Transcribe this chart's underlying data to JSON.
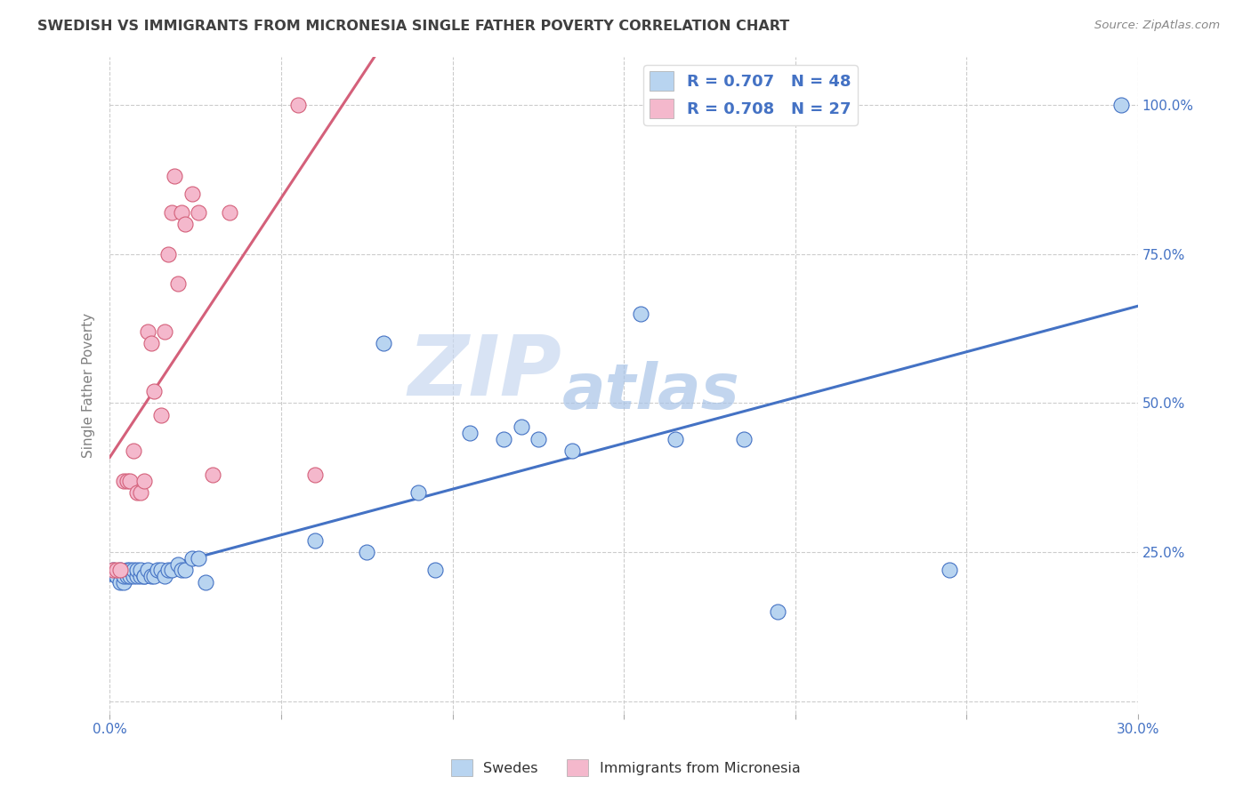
{
  "title": "SWEDISH VS IMMIGRANTS FROM MICRONESIA SINGLE FATHER POVERTY CORRELATION CHART",
  "source": "Source: ZipAtlas.com",
  "ylabel_label": "Single Father Poverty",
  "legend_label1": "Swedes",
  "legend_label2": "Immigrants from Micronesia",
  "r1": 0.707,
  "n1": 48,
  "r2": 0.708,
  "n2": 27,
  "watermark_zip": "ZIP",
  "watermark_atlas": "atlas",
  "xlim": [
    0.0,
    0.3
  ],
  "ylim": [
    -0.02,
    1.08
  ],
  "yticks": [
    0.0,
    0.25,
    0.5,
    0.75,
    1.0
  ],
  "ytick_labels": [
    "",
    "25.0%",
    "50.0%",
    "75.0%",
    "100.0%"
  ],
  "xtick_vals": [
    0.0,
    0.05,
    0.1,
    0.15,
    0.2,
    0.25,
    0.3
  ],
  "swedes_x": [
    0.001,
    0.002,
    0.003,
    0.003,
    0.004,
    0.004,
    0.005,
    0.005,
    0.006,
    0.006,
    0.007,
    0.007,
    0.008,
    0.008,
    0.009,
    0.009,
    0.01,
    0.01,
    0.011,
    0.012,
    0.013,
    0.014,
    0.015,
    0.016,
    0.017,
    0.018,
    0.02,
    0.021,
    0.022,
    0.024,
    0.026,
    0.028,
    0.06,
    0.075,
    0.08,
    0.09,
    0.095,
    0.105,
    0.115,
    0.12,
    0.125,
    0.135,
    0.155,
    0.165,
    0.185,
    0.195,
    0.245,
    0.295
  ],
  "swedes_y": [
    0.22,
    0.21,
    0.2,
    0.22,
    0.2,
    0.21,
    0.21,
    0.22,
    0.21,
    0.22,
    0.21,
    0.22,
    0.21,
    0.22,
    0.21,
    0.22,
    0.21,
    0.21,
    0.22,
    0.21,
    0.21,
    0.22,
    0.22,
    0.21,
    0.22,
    0.22,
    0.23,
    0.22,
    0.22,
    0.24,
    0.24,
    0.2,
    0.27,
    0.25,
    0.6,
    0.35,
    0.22,
    0.45,
    0.44,
    0.46,
    0.44,
    0.42,
    0.65,
    0.44,
    0.44,
    0.15,
    0.22,
    1.0
  ],
  "micronesia_x": [
    0.001,
    0.002,
    0.003,
    0.004,
    0.005,
    0.006,
    0.007,
    0.008,
    0.009,
    0.01,
    0.011,
    0.012,
    0.013,
    0.015,
    0.016,
    0.017,
    0.018,
    0.019,
    0.02,
    0.021,
    0.022,
    0.024,
    0.026,
    0.03,
    0.035,
    0.055,
    0.06
  ],
  "micronesia_y": [
    0.22,
    0.22,
    0.22,
    0.37,
    0.37,
    0.37,
    0.42,
    0.35,
    0.35,
    0.37,
    0.62,
    0.6,
    0.52,
    0.48,
    0.62,
    0.75,
    0.82,
    0.88,
    0.7,
    0.82,
    0.8,
    0.85,
    0.82,
    0.38,
    0.82,
    1.0,
    0.38
  ],
  "blue_color": "#b8d4f0",
  "pink_color": "#f4b8cc",
  "blue_line_color": "#4472c4",
  "pink_line_color": "#d4607a",
  "legend_text_color": "#4472c4",
  "grid_color": "#cccccc",
  "title_color": "#404040",
  "watermark_zip_color": "#c8d8f0",
  "watermark_atlas_color": "#a8c4e8",
  "axis_tick_color": "#4472c4",
  "ylabel_color": "#808080"
}
